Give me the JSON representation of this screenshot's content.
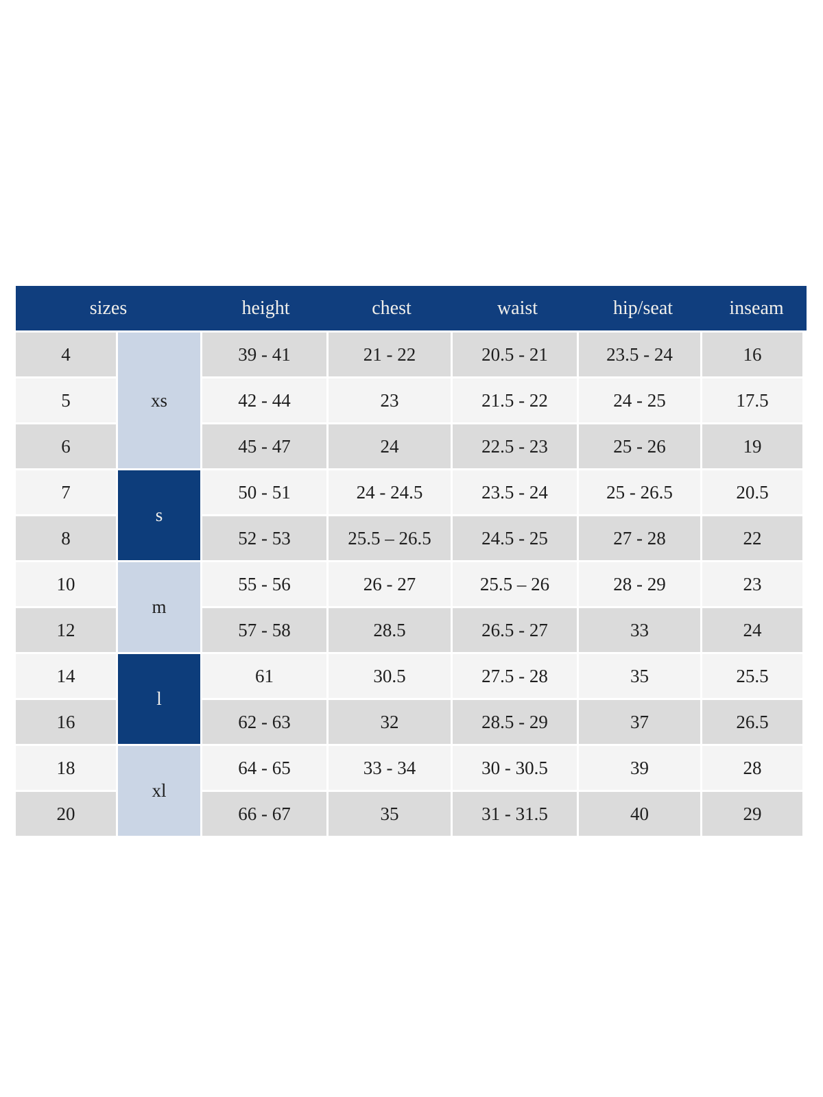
{
  "chart_data": {
    "type": "table",
    "columns": [
      "sizes",
      "height",
      "chest",
      "waist",
      "hip/seat",
      "inseam"
    ],
    "header": {
      "sizes": "sizes",
      "height": "height",
      "chest": "chest",
      "waist": "waist",
      "hip_seat": "hip/seat",
      "inseam": "inseam"
    },
    "groups": [
      {
        "label": "xs",
        "span": 3,
        "shade": "light"
      },
      {
        "label": "s",
        "span": 2,
        "shade": "dark"
      },
      {
        "label": "m",
        "span": 2,
        "shade": "light"
      },
      {
        "label": "l",
        "span": 2,
        "shade": "dark"
      },
      {
        "label": "xl",
        "span": 2,
        "shade": "light"
      }
    ],
    "rows": [
      {
        "size": "4",
        "height": "39 - 41",
        "chest": "21 - 22",
        "waist": "20.5 - 21",
        "hip_seat": "23.5 - 24",
        "inseam": "16"
      },
      {
        "size": "5",
        "height": "42 - 44",
        "chest": "23",
        "waist": "21.5 - 22",
        "hip_seat": "24 - 25",
        "inseam": "17.5"
      },
      {
        "size": "6",
        "height": "45 - 47",
        "chest": "24",
        "waist": "22.5 - 23",
        "hip_seat": "25 - 26",
        "inseam": "19"
      },
      {
        "size": "7",
        "height": "50 - 51",
        "chest": "24 - 24.5",
        "waist": "23.5 - 24",
        "hip_seat": "25 - 26.5",
        "inseam": "20.5"
      },
      {
        "size": "8",
        "height": "52 - 53",
        "chest": "25.5 – 26.5",
        "waist": "24.5 - 25",
        "hip_seat": "27 - 28",
        "inseam": "22"
      },
      {
        "size": "10",
        "height": "55 - 56",
        "chest": "26 - 27",
        "waist": "25.5 – 26",
        "hip_seat": "28 - 29",
        "inseam": "23"
      },
      {
        "size": "12",
        "height": "57 - 58",
        "chest": "28.5",
        "waist": "26.5 - 27",
        "hip_seat": "33",
        "inseam": "24"
      },
      {
        "size": "14",
        "height": "61",
        "chest": "30.5",
        "waist": "27.5 - 28",
        "hip_seat": "35",
        "inseam": "25.5"
      },
      {
        "size": "16",
        "height": "62 - 63",
        "chest": "32",
        "waist": "28.5 - 29",
        "hip_seat": "37",
        "inseam": "26.5"
      },
      {
        "size": "18",
        "height": "64 - 65",
        "chest": "33 - 34",
        "waist": "30 - 30.5",
        "hip_seat": "39",
        "inseam": "28"
      },
      {
        "size": "20",
        "height": "66 - 67",
        "chest": "35",
        "waist": "31 - 31.5",
        "hip_seat": "40",
        "inseam": "29"
      }
    ],
    "colors": {
      "header_bg": "#103e7e",
      "header_text": "#f0efeb",
      "band_dark": "#0d3d7b",
      "band_light": "#cad5e5",
      "row_odd": "#dbdbdb",
      "row_even": "#f4f4f4",
      "text": "#1e1e1e"
    },
    "layout_hints": {
      "grid": "off",
      "legend": "none",
      "group_column_position": "second column, spans size groups vertically"
    }
  }
}
